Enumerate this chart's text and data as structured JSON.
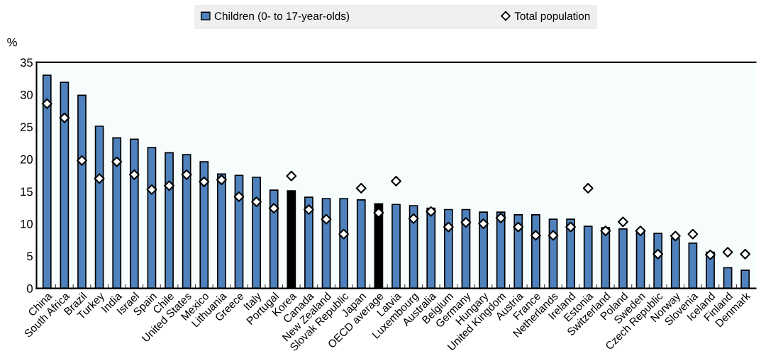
{
  "chart_data": {
    "type": "bar",
    "ylabel": "%",
    "categories": [
      "China",
      "South Africa",
      "Brazil",
      "Turkey",
      "India",
      "Israel",
      "Spain",
      "Chile",
      "United States",
      "Mexico",
      "Lithuania",
      "Greece",
      "Italy",
      "Portugal",
      "Korea",
      "Canada",
      "New Zealand",
      "Slovak Republic",
      "Japan",
      "OECD average",
      "Latvia",
      "Luxembourg",
      "Australia",
      "Belgium",
      "Germany",
      "Hungary",
      "United Kingdom",
      "Austria",
      "France",
      "Netherlands",
      "Ireland",
      "Estonia",
      "Switzerland",
      "Poland",
      "Sweden",
      "Czech Republic",
      "Norway",
      "Slovenia",
      "Iceland",
      "Finland",
      "Denmark"
    ],
    "series": [
      {
        "name": "Children (0- to 17-year-olds)",
        "color": "#4f81bd",
        "colors": [
          "#4f81bd",
          "#4f81bd",
          "#4f81bd",
          "#4f81bd",
          "#4f81bd",
          "#4f81bd",
          "#4f81bd",
          "#4f81bd",
          "#4f81bd",
          "#4f81bd",
          "#4f81bd",
          "#4f81bd",
          "#4f81bd",
          "#4f81bd",
          "#000000",
          "#4f81bd",
          "#4f81bd",
          "#4f81bd",
          "#4f81bd",
          "#000000",
          "#4f81bd",
          "#4f81bd",
          "#4f81bd",
          "#4f81bd",
          "#4f81bd",
          "#4f81bd",
          "#4f81bd",
          "#4f81bd",
          "#4f81bd",
          "#4f81bd",
          "#4f81bd",
          "#4f81bd",
          "#4f81bd",
          "#4f81bd",
          "#4f81bd",
          "#4f81bd",
          "#4f81bd",
          "#4f81bd",
          "#4f81bd",
          "#4f81bd",
          "#4f81bd"
        ],
        "values": [
          33.0,
          31.9,
          29.9,
          25.1,
          23.3,
          23.1,
          21.8,
          21.0,
          20.7,
          19.6,
          17.7,
          17.5,
          17.2,
          15.2,
          15.1,
          14.1,
          13.9,
          13.9,
          13.7,
          13.1,
          13.0,
          12.8,
          12.4,
          12.2,
          12.2,
          11.8,
          11.8,
          11.4,
          11.4,
          10.7,
          10.7,
          9.6,
          9.4,
          9.2,
          8.9,
          8.5,
          7.7,
          7.0,
          5.6,
          3.2,
          2.8
        ]
      },
      {
        "name": "Total population",
        "type": "scatter",
        "marker": "diamond",
        "color": "#ffffff",
        "values": [
          28.6,
          26.4,
          19.8,
          17.0,
          19.6,
          17.6,
          15.3,
          15.9,
          17.6,
          16.5,
          16.8,
          14.2,
          13.4,
          12.4,
          17.4,
          12.2,
          10.7,
          8.4,
          15.5,
          11.7,
          16.6,
          10.8,
          11.9,
          9.5,
          10.2,
          10.0,
          10.9,
          9.5,
          8.2,
          8.2,
          9.5,
          15.5,
          8.9,
          10.3,
          8.9,
          5.3,
          8.1,
          8.4,
          5.2,
          5.6,
          5.3
        ]
      }
    ],
    "ylim": [
      0,
      35
    ],
    "yticks": [
      0,
      5,
      10,
      15,
      20,
      25,
      30,
      35
    ],
    "grid": false,
    "legend": "top"
  }
}
